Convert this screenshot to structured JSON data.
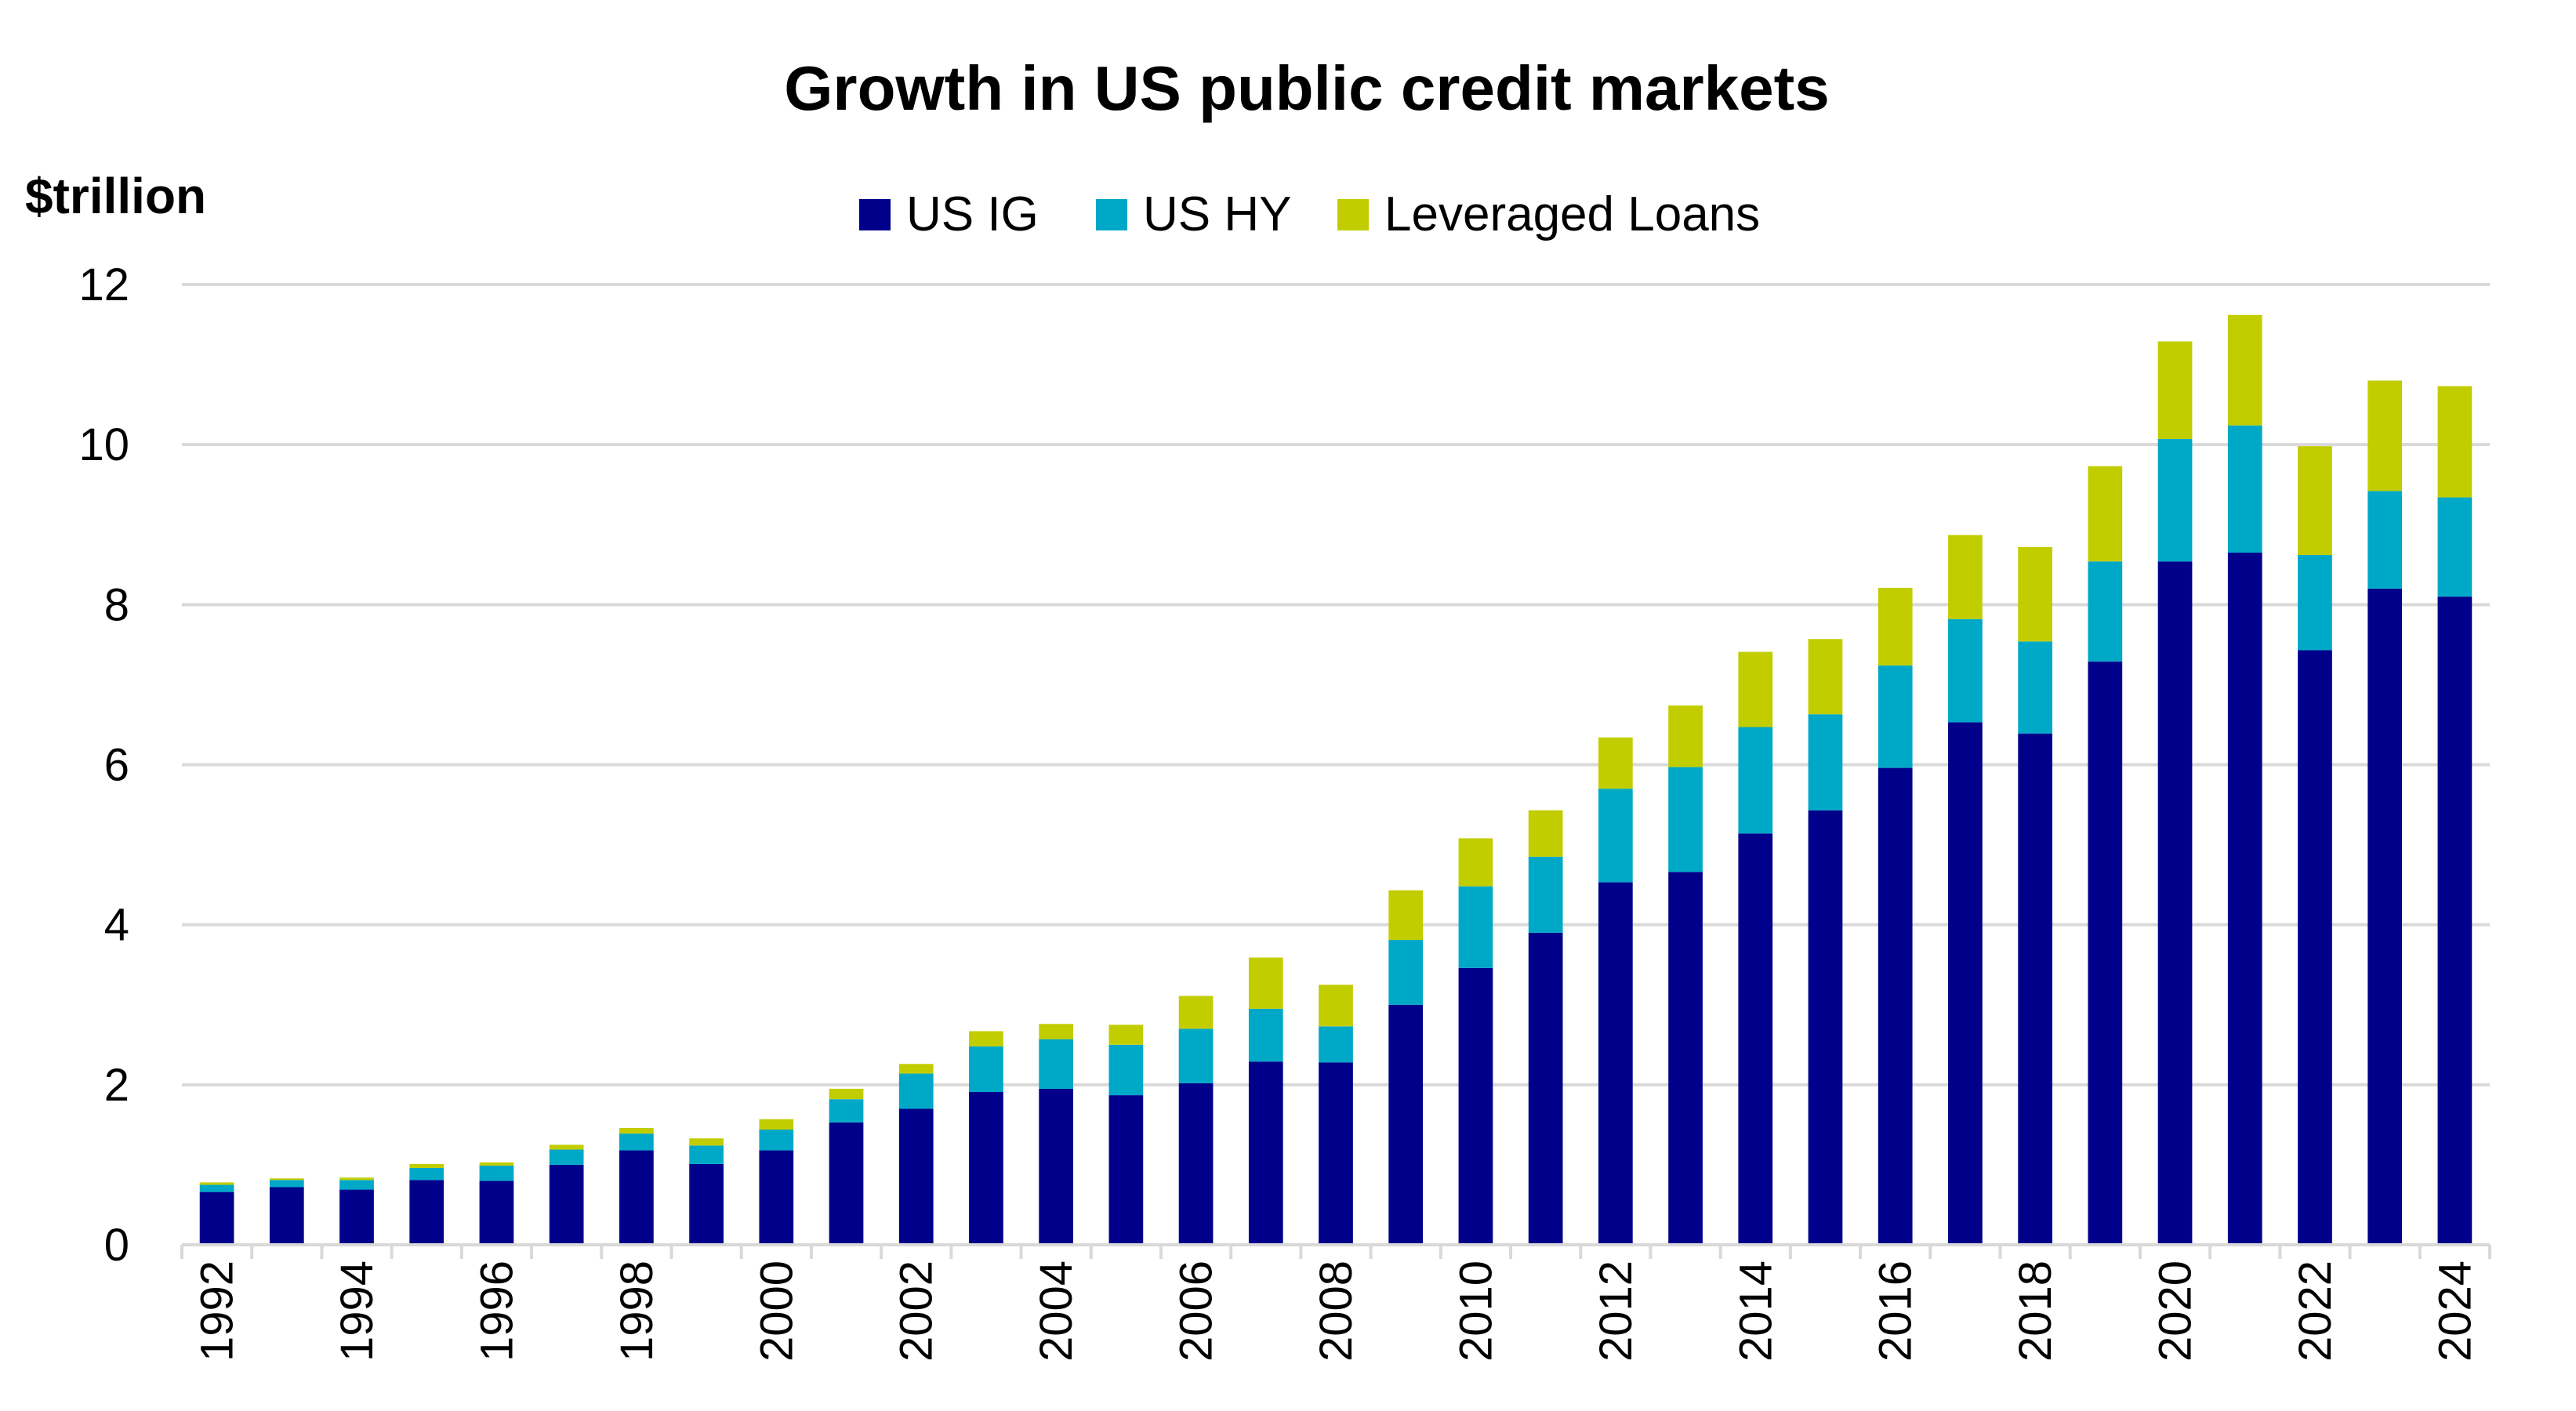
{
  "chart_data": {
    "type": "bar",
    "stacked": true,
    "title": "Growth in US public credit markets",
    "ylabel": "$trillion",
    "xlabel": "",
    "ylim": [
      0,
      12
    ],
    "yticks": [
      0,
      2,
      4,
      6,
      8,
      10,
      12
    ],
    "grid": true,
    "legend_position": "top",
    "categories": [
      "1992",
      "1993",
      "1994",
      "1995",
      "1996",
      "1997",
      "1998",
      "1999",
      "2000",
      "2001",
      "2002",
      "2003",
      "2004",
      "2005",
      "2006",
      "2007",
      "2008",
      "2009",
      "2010",
      "2011",
      "2012",
      "2013",
      "2014",
      "2015",
      "2016",
      "2017",
      "2018",
      "2019",
      "2020",
      "2021",
      "2022",
      "2023",
      "2024"
    ],
    "x_tick_labels": [
      "1992",
      "1994",
      "1996",
      "1998",
      "2000",
      "2002",
      "2004",
      "2006",
      "2008",
      "2010",
      "2012",
      "2014",
      "2016",
      "2018",
      "2020",
      "2022",
      "2024"
    ],
    "series": [
      {
        "name": "US IG",
        "color": "#00008B",
        "values": [
          0.66,
          0.72,
          0.69,
          0.81,
          0.8,
          1.0,
          1.18,
          1.01,
          1.18,
          1.53,
          1.7,
          1.91,
          1.95,
          1.87,
          2.02,
          2.29,
          2.28,
          3.0,
          3.46,
          3.9,
          4.53,
          4.66,
          5.14,
          5.43,
          5.96,
          6.53,
          6.39,
          7.29,
          8.54,
          8.65,
          7.43,
          8.2,
          8.1
        ]
      },
      {
        "name": "US HY",
        "color": "#00A8C8",
        "values": [
          0.09,
          0.09,
          0.12,
          0.15,
          0.19,
          0.19,
          0.21,
          0.23,
          0.26,
          0.29,
          0.44,
          0.57,
          0.62,
          0.63,
          0.68,
          0.66,
          0.45,
          0.81,
          1.02,
          0.95,
          1.17,
          1.31,
          1.33,
          1.2,
          1.28,
          1.29,
          1.15,
          1.25,
          1.53,
          1.59,
          1.19,
          1.22,
          1.24
        ]
      },
      {
        "name": "Leveraged Loans",
        "color": "#C2CD00",
        "values": [
          0.03,
          0.02,
          0.03,
          0.05,
          0.04,
          0.06,
          0.07,
          0.09,
          0.13,
          0.13,
          0.12,
          0.19,
          0.19,
          0.25,
          0.41,
          0.64,
          0.52,
          0.62,
          0.6,
          0.58,
          0.64,
          0.77,
          0.94,
          0.94,
          0.97,
          1.05,
          1.18,
          1.19,
          1.22,
          1.38,
          1.36,
          1.38,
          1.39
        ]
      }
    ]
  }
}
